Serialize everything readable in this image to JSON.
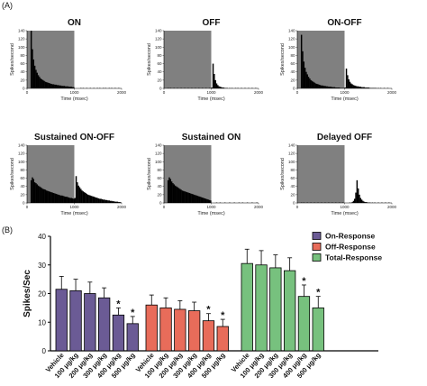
{
  "panel_labels": {
    "a": "(A)",
    "b": "(B)"
  },
  "chart_data": [
    {
      "type": "histogram-grid",
      "ylabel": "Spikes/second",
      "xlabel": "Time (msec)",
      "yticks": [
        0,
        20,
        40,
        60,
        80,
        100,
        120,
        140
      ],
      "xticks": [
        0,
        1000,
        2000
      ],
      "ylim": [
        0,
        140
      ],
      "xlim": [
        0,
        2000
      ],
      "panels": [
        {
          "title": "ON",
          "stim": [
            0,
            1000
          ],
          "profile": [
            0,
            0,
            0,
            140,
            95,
            70,
            55,
            45,
            38,
            32,
            28,
            24,
            22,
            20,
            18,
            16,
            15,
            14,
            13,
            12,
            11,
            10,
            10,
            9,
            9,
            8,
            8,
            7,
            7,
            6,
            6,
            6,
            5,
            5,
            5,
            4,
            4,
            4,
            3,
            3,
            0,
            0,
            0,
            0,
            0,
            1,
            0,
            1,
            0,
            0,
            1,
            0,
            0,
            1,
            0,
            0,
            1,
            0,
            0,
            1,
            0,
            1,
            0,
            0,
            1,
            0,
            1,
            0,
            0,
            1,
            0,
            1,
            0,
            0,
            1,
            0,
            0,
            1,
            0,
            0
          ]
        },
        {
          "title": "OFF",
          "stim": [
            0,
            1000
          ],
          "profile": [
            0,
            0,
            0,
            1,
            0,
            1,
            0,
            0,
            1,
            0,
            0,
            1,
            0,
            0,
            1,
            0,
            0,
            1,
            0,
            0,
            1,
            0,
            0,
            1,
            0,
            0,
            1,
            0,
            0,
            1,
            0,
            0,
            1,
            0,
            0,
            1,
            0,
            0,
            1,
            0,
            2,
            60,
            35,
            20,
            12,
            8,
            5,
            4,
            3,
            2,
            2,
            1,
            1,
            1,
            0,
            1,
            0,
            1,
            0,
            0,
            1,
            0,
            1,
            0,
            0,
            1,
            0,
            0,
            1,
            0,
            0,
            1,
            0,
            0,
            1,
            0,
            0,
            1,
            0,
            0
          ]
        },
        {
          "title": "ON-OFF",
          "stim": [
            0,
            1000
          ],
          "profile": [
            0,
            0,
            0,
            130,
            90,
            65,
            50,
            40,
            34,
            28,
            24,
            20,
            18,
            16,
            14,
            12,
            11,
            10,
            9,
            8,
            7,
            7,
            6,
            6,
            5,
            5,
            4,
            4,
            4,
            3,
            3,
            3,
            2,
            2,
            2,
            2,
            1,
            1,
            1,
            1,
            2,
            48,
            32,
            22,
            16,
            12,
            10,
            8,
            7,
            6,
            5,
            5,
            4,
            4,
            3,
            3,
            3,
            2,
            2,
            2,
            2,
            1,
            1,
            1,
            1,
            1,
            1,
            0,
            1,
            0,
            1,
            0,
            0,
            1,
            0,
            0,
            1,
            0,
            0,
            0
          ]
        },
        {
          "title": "Sustained ON-OFF",
          "stim": [
            0,
            1000
          ],
          "profile": [
            0,
            0,
            0,
            55,
            62,
            58,
            50,
            48,
            45,
            42,
            40,
            38,
            36,
            34,
            33,
            32,
            30,
            29,
            28,
            27,
            26,
            25,
            24,
            23,
            22,
            21,
            20,
            19,
            18,
            18,
            17,
            16,
            15,
            15,
            14,
            13,
            12,
            12,
            11,
            10,
            12,
            65,
            50,
            42,
            38,
            34,
            30,
            28,
            26,
            24,
            22,
            20,
            19,
            18,
            17,
            16,
            15,
            14,
            13,
            12,
            11,
            10,
            10,
            9,
            8,
            8,
            7,
            7,
            6,
            6,
            5,
            5,
            4,
            4,
            3,
            3,
            3,
            2,
            2,
            1
          ]
        },
        {
          "title": "Sustained ON",
          "stim": [
            0,
            1000
          ],
          "profile": [
            0,
            0,
            0,
            55,
            62,
            58,
            52,
            48,
            45,
            42,
            40,
            38,
            36,
            34,
            32,
            30,
            29,
            28,
            27,
            26,
            25,
            24,
            23,
            22,
            21,
            20,
            19,
            18,
            17,
            16,
            15,
            14,
            13,
            12,
            11,
            10,
            9,
            8,
            7,
            6,
            0,
            0,
            0,
            0,
            1,
            0,
            0,
            1,
            0,
            0,
            0,
            1,
            0,
            0,
            0,
            1,
            0,
            0,
            0,
            1,
            0,
            0,
            0,
            1,
            0,
            0,
            1,
            0,
            0,
            0,
            1,
            0,
            0,
            0,
            1,
            0,
            0,
            0,
            1,
            0
          ]
        },
        {
          "title": "Delayed OFF",
          "stim": [
            0,
            1000
          ],
          "profile": [
            0,
            0,
            0,
            1,
            0,
            1,
            0,
            0,
            1,
            0,
            0,
            1,
            0,
            0,
            1,
            0,
            0,
            1,
            0,
            0,
            1,
            0,
            0,
            1,
            0,
            0,
            1,
            0,
            0,
            1,
            0,
            0,
            1,
            0,
            0,
            1,
            0,
            0,
            1,
            0,
            0,
            0,
            0,
            0,
            1,
            0,
            2,
            5,
            10,
            25,
            55,
            35,
            20,
            12,
            8,
            5,
            3,
            2,
            2,
            1,
            1,
            1,
            0,
            1,
            0,
            1,
            0,
            0,
            1,
            0,
            0,
            1,
            0,
            0,
            1,
            0,
            0,
            1,
            0,
            0
          ]
        }
      ]
    },
    {
      "type": "bar",
      "ylabel": "Spikes/Sec",
      "ylim": [
        0,
        40
      ],
      "yticks": [
        0,
        10,
        20,
        30,
        40
      ],
      "categories": [
        "Vehicle",
        "100 μg/kg",
        "200 μg/kg",
        "300 μg/kg",
        "400 μg/kg",
        "500 μg/kg"
      ],
      "series": [
        {
          "name": "On-Response",
          "color": "#6b5b95",
          "values": [
            21.5,
            21,
            20,
            18.5,
            12.5,
            9.5
          ],
          "errors": [
            4.5,
            4,
            4,
            3.5,
            2.5,
            2.5
          ],
          "significant": [
            false,
            false,
            false,
            false,
            true,
            true
          ]
        },
        {
          "name": "Off-Response",
          "color": "#e86c5a",
          "values": [
            16,
            15,
            14.5,
            14,
            10.5,
            8.5
          ],
          "errors": [
            3.5,
            3.5,
            3,
            3,
            2.5,
            2.5
          ],
          "significant": [
            false,
            false,
            false,
            false,
            true,
            true
          ]
        },
        {
          "name": "Total-Response",
          "color": "#77c17e",
          "values": [
            30.5,
            30,
            29,
            28,
            19,
            15
          ],
          "errors": [
            5,
            5,
            4.5,
            4.5,
            4,
            4
          ],
          "significant": [
            false,
            false,
            false,
            false,
            true,
            true
          ]
        }
      ],
      "significance_marker": "*"
    }
  ]
}
